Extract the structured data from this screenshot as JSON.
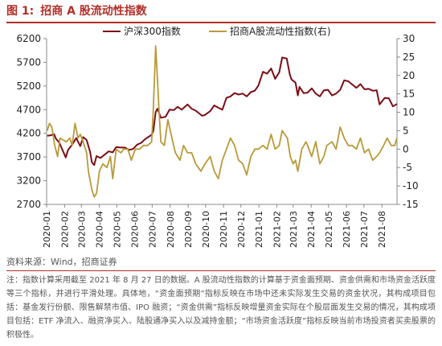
{
  "figure": {
    "number": "图 1:",
    "title": "招商 A 股流动性指数"
  },
  "colors": {
    "accent": "#b03028",
    "hs300": "#7b0e16",
    "liquidity": "#b89a3a",
    "axis": "#888888"
  },
  "chart_data": {
    "type": "line",
    "title": "",
    "legend_position": "top",
    "grid": false,
    "x_tick_labels": [
      "2020-01",
      "2020-02",
      "2020-03",
      "2020-04",
      "2020-05",
      "2020-06",
      "2020-07",
      "2020-08",
      "2020-09",
      "2020-10",
      "2020-11",
      "2020-12",
      "2021-01",
      "2021-02",
      "2021-03",
      "2021-04",
      "2021-05",
      "2021-06",
      "2021-07",
      "2021-08"
    ],
    "x_range": [
      "2020-01-01",
      "2021-08-27"
    ],
    "left_axis": {
      "series": "沪深300指数",
      "ylim": [
        2700,
        6200
      ],
      "ticks": [
        2700,
        3200,
        3700,
        4200,
        4700,
        5200,
        5700,
        6200
      ]
    },
    "right_axis": {
      "series": "招商A股流动性指数(右)",
      "ylim": [
        -15,
        30
      ],
      "ticks": [
        -15,
        -10,
        -5,
        0,
        5,
        10,
        15,
        20,
        25,
        30
      ]
    },
    "series": [
      {
        "name": "沪深300指数",
        "axis": "left",
        "points": [
          [
            "2020-01-02",
            4150
          ],
          [
            "2020-01-08",
            4160
          ],
          [
            "2020-01-14",
            4180
          ],
          [
            "2020-01-17",
            4090
          ],
          [
            "2020-01-23",
            4000
          ],
          [
            "2020-02-03",
            3690
          ],
          [
            "2020-02-07",
            3850
          ],
          [
            "2020-02-14",
            3960
          ],
          [
            "2020-02-21",
            4100
          ],
          [
            "2020-02-28",
            3930
          ],
          [
            "2020-03-04",
            4120
          ],
          [
            "2020-03-10",
            4060
          ],
          [
            "2020-03-16",
            3810
          ],
          [
            "2020-03-19",
            3590
          ],
          [
            "2020-03-23",
            3530
          ],
          [
            "2020-03-27",
            3720
          ],
          [
            "2020-04-03",
            3680
          ],
          [
            "2020-04-10",
            3750
          ],
          [
            "2020-04-17",
            3820
          ],
          [
            "2020-04-24",
            3800
          ],
          [
            "2020-04-30",
            3910
          ],
          [
            "2020-05-08",
            3900
          ],
          [
            "2020-05-15",
            3900
          ],
          [
            "2020-05-22",
            3850
          ],
          [
            "2020-05-29",
            3870
          ],
          [
            "2020-06-05",
            3960
          ],
          [
            "2020-06-12",
            4000
          ],
          [
            "2020-06-19",
            4080
          ],
          [
            "2020-06-30",
            4170
          ],
          [
            "2020-07-03",
            4250
          ],
          [
            "2020-07-07",
            4650
          ],
          [
            "2020-07-10",
            4720
          ],
          [
            "2020-07-16",
            4530
          ],
          [
            "2020-07-24",
            4550
          ],
          [
            "2020-07-31",
            4700
          ],
          [
            "2020-08-07",
            4690
          ],
          [
            "2020-08-14",
            4760
          ],
          [
            "2020-08-21",
            4700
          ],
          [
            "2020-08-31",
            4810
          ],
          [
            "2020-09-07",
            4720
          ],
          [
            "2020-09-14",
            4680
          ],
          [
            "2020-09-25",
            4570
          ],
          [
            "2020-09-30",
            4590
          ],
          [
            "2020-10-09",
            4670
          ],
          [
            "2020-10-16",
            4790
          ],
          [
            "2020-10-23",
            4740
          ],
          [
            "2020-10-30",
            4700
          ],
          [
            "2020-11-06",
            4950
          ],
          [
            "2020-11-13",
            4980
          ],
          [
            "2020-11-20",
            5050
          ],
          [
            "2020-11-27",
            5020
          ],
          [
            "2020-12-04",
            5040
          ],
          [
            "2020-12-11",
            4980
          ],
          [
            "2020-12-18",
            5070
          ],
          [
            "2020-12-25",
            5100
          ],
          [
            "2020-12-31",
            5210
          ],
          [
            "2021-01-08",
            5500
          ],
          [
            "2021-01-15",
            5460
          ],
          [
            "2021-01-22",
            5570
          ],
          [
            "2021-01-29",
            5350
          ],
          [
            "2021-02-05",
            5490
          ],
          [
            "2021-02-10",
            5800
          ],
          [
            "2021-02-18",
            5780
          ],
          [
            "2021-02-23",
            5450
          ],
          [
            "2021-02-26",
            5340
          ],
          [
            "2021-03-05",
            5270
          ],
          [
            "2021-03-09",
            5000
          ],
          [
            "2021-03-12",
            5180
          ],
          [
            "2021-03-19",
            5050
          ],
          [
            "2021-03-26",
            5060
          ],
          [
            "2021-04-02",
            5150
          ],
          [
            "2021-04-09",
            5040
          ],
          [
            "2021-04-16",
            4980
          ],
          [
            "2021-04-23",
            5110
          ],
          [
            "2021-04-30",
            5120
          ],
          [
            "2021-05-07",
            5000
          ],
          [
            "2021-05-14",
            5040
          ],
          [
            "2021-05-21",
            5120
          ],
          [
            "2021-05-28",
            5320
          ],
          [
            "2021-06-04",
            5300
          ],
          [
            "2021-06-11",
            5230
          ],
          [
            "2021-06-18",
            5160
          ],
          [
            "2021-06-25",
            5240
          ],
          [
            "2021-07-02",
            5130
          ],
          [
            "2021-07-09",
            5140
          ],
          [
            "2021-07-16",
            5100
          ],
          [
            "2021-07-23",
            5110
          ],
          [
            "2021-07-28",
            4810
          ],
          [
            "2021-08-06",
            4950
          ],
          [
            "2021-08-13",
            4940
          ],
          [
            "2021-08-20",
            4770
          ],
          [
            "2021-08-27",
            4820
          ]
        ]
      },
      {
        "name": "招商A股流动性指数(右)",
        "axis": "right",
        "points": [
          [
            "2020-01-02",
            5
          ],
          [
            "2020-01-06",
            7
          ],
          [
            "2020-01-10",
            6
          ],
          [
            "2020-01-15",
            1
          ],
          [
            "2020-01-20",
            -2
          ],
          [
            "2020-01-24",
            3
          ],
          [
            "2020-02-04",
            2
          ],
          [
            "2020-02-10",
            3
          ],
          [
            "2020-02-14",
            1
          ],
          [
            "2020-02-19",
            7
          ],
          [
            "2020-02-24",
            3
          ],
          [
            "2020-02-28",
            4
          ],
          [
            "2020-03-04",
            2
          ],
          [
            "2020-03-10",
            -1
          ],
          [
            "2020-03-13",
            -6
          ],
          [
            "2020-03-19",
            -11
          ],
          [
            "2020-03-23",
            -13
          ],
          [
            "2020-03-27",
            -12
          ],
          [
            "2020-04-01",
            -6
          ],
          [
            "2020-04-07",
            -4
          ],
          [
            "2020-04-14",
            -5
          ],
          [
            "2020-04-20",
            -2
          ],
          [
            "2020-04-24",
            -8
          ],
          [
            "2020-04-30",
            0
          ],
          [
            "2020-05-08",
            -1
          ],
          [
            "2020-05-13",
            0
          ],
          [
            "2020-05-20",
            0
          ],
          [
            "2020-05-26",
            -3
          ],
          [
            "2020-06-02",
            0
          ],
          [
            "2020-06-09",
            0
          ],
          [
            "2020-06-16",
            1
          ],
          [
            "2020-06-23",
            1
          ],
          [
            "2020-06-30",
            2
          ],
          [
            "2020-07-03",
            11
          ],
          [
            "2020-07-07",
            28
          ],
          [
            "2020-07-09",
            22
          ],
          [
            "2020-07-13",
            10
          ],
          [
            "2020-07-16",
            2
          ],
          [
            "2020-07-22",
            1
          ],
          [
            "2020-07-28",
            8
          ],
          [
            "2020-08-04",
            3
          ],
          [
            "2020-08-10",
            -1
          ],
          [
            "2020-08-18",
            -3
          ],
          [
            "2020-08-24",
            1
          ],
          [
            "2020-08-31",
            -1
          ],
          [
            "2020-09-07",
            -1
          ],
          [
            "2020-09-14",
            -4
          ],
          [
            "2020-09-23",
            -6
          ],
          [
            "2020-09-30",
            -4
          ],
          [
            "2020-10-09",
            -2
          ],
          [
            "2020-10-16",
            -6
          ],
          [
            "2020-10-23",
            -8
          ],
          [
            "2020-10-30",
            -3
          ],
          [
            "2020-11-06",
            0
          ],
          [
            "2020-11-13",
            3
          ],
          [
            "2020-11-20",
            1
          ],
          [
            "2020-11-27",
            -3
          ],
          [
            "2020-12-04",
            -4
          ],
          [
            "2020-12-11",
            -7
          ],
          [
            "2020-12-18",
            -2
          ],
          [
            "2020-12-25",
            0
          ],
          [
            "2020-12-31",
            0
          ],
          [
            "2021-01-08",
            1
          ],
          [
            "2021-01-15",
            0
          ],
          [
            "2021-01-22",
            4
          ],
          [
            "2021-01-29",
            0
          ],
          [
            "2021-02-05",
            1
          ],
          [
            "2021-02-10",
            5
          ],
          [
            "2021-02-19",
            3
          ],
          [
            "2021-02-24",
            -2
          ],
          [
            "2021-03-01",
            -4
          ],
          [
            "2021-03-05",
            -3
          ],
          [
            "2021-03-09",
            -6
          ],
          [
            "2021-03-16",
            0
          ],
          [
            "2021-03-23",
            2
          ],
          [
            "2021-03-26",
            1
          ],
          [
            "2021-04-02",
            -2
          ],
          [
            "2021-04-09",
            2
          ],
          [
            "2021-04-16",
            -4
          ],
          [
            "2021-04-23",
            -2
          ],
          [
            "2021-04-28",
            1
          ],
          [
            "2021-05-07",
            2
          ],
          [
            "2021-05-14",
            0
          ],
          [
            "2021-05-21",
            6
          ],
          [
            "2021-05-28",
            3
          ],
          [
            "2021-06-04",
            1
          ],
          [
            "2021-06-11",
            1
          ],
          [
            "2021-06-18",
            0
          ],
          [
            "2021-06-25",
            3
          ],
          [
            "2021-07-02",
            -1
          ],
          [
            "2021-07-09",
            0
          ],
          [
            "2021-07-16",
            -3
          ],
          [
            "2021-07-23",
            -2
          ],
          [
            "2021-07-28",
            -1
          ],
          [
            "2021-08-04",
            1
          ],
          [
            "2021-08-10",
            3
          ],
          [
            "2021-08-17",
            1
          ],
          [
            "2021-08-23",
            1
          ],
          [
            "2021-08-27",
            3
          ]
        ]
      }
    ]
  },
  "source_text": "资料来源：Wind，招商证券",
  "note_text": "注：指数计算采用截至 2021 年 8 月 27 日的数据。A 股流动性指数的计算基于资金面预期、资金供需和市场资金活跃度等三个指标，并进行平滑处理。具体地，“资金面预期”指标反映在市场中还未实际发生交易的资金状况，其构成项目包括：基金发行份额、限售解禁市值、IPO 融资；“资金供需”指标反映增量资金实际在个股层面发生交易的情况，其构成项目包括：ETF 净流入、融资净买入、陆股通净买入以及减持金额；“市场资金活跃度”指标反映当前市场投资者买卖股票的积极性。"
}
